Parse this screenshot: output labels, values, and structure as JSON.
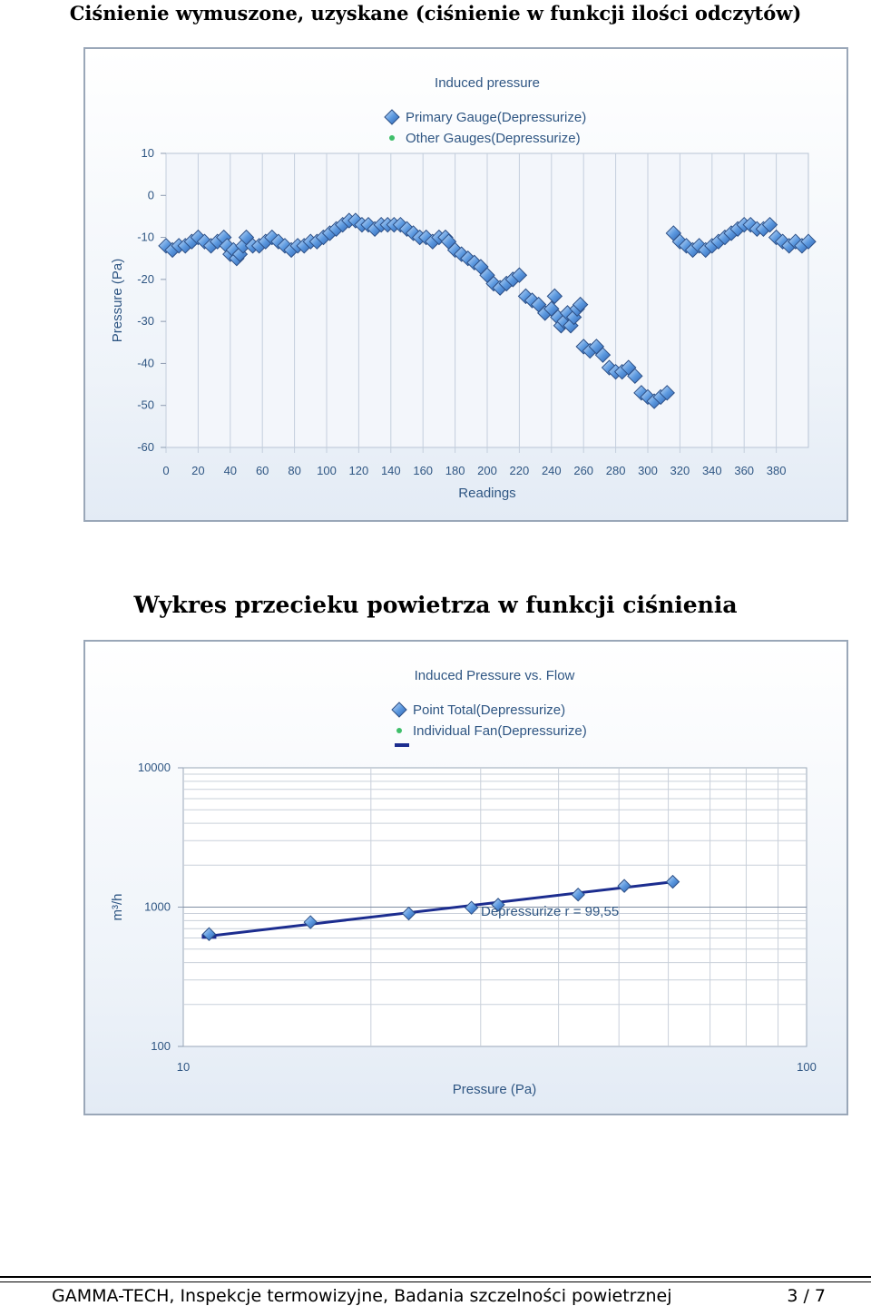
{
  "page": {
    "title1": "Ciśnienie wymuszone, uzyskane (ciśnienie w funkcji ilości odczytów)",
    "title2": "Wykres przecieku powietrza w funkcji ciśnienia",
    "footer_text": "GAMMA-TECH, Inspekcje termowizyjne, Badania szczelności powietrznej",
    "footer_page": "3 / 7"
  },
  "chart_data": [
    {
      "type": "scatter",
      "title": "Induced pressure",
      "xlabel": "Readings",
      "ylabel": "Pressure (Pa)",
      "xlim": [
        0,
        400
      ],
      "ylim": [
        -60,
        10
      ],
      "xticks": [
        "0",
        "20",
        "40",
        "60",
        "80",
        "100",
        "120",
        "140",
        "160",
        "180",
        "200",
        "220",
        "240",
        "260",
        "280",
        "300",
        "320",
        "340",
        "360",
        "380"
      ],
      "yticks": [
        "10",
        "0",
        "-10",
        "-20",
        "-30",
        "-40",
        "-50",
        "-60"
      ],
      "grid": "vertical",
      "legend_position": "top",
      "series": [
        {
          "name": "Primary Gauge(Depressurize)",
          "marker": "diamond",
          "color": "#4a8fd6",
          "points": [
            [
              0,
              -12
            ],
            [
              4,
              -13
            ],
            [
              8,
              -12
            ],
            [
              12,
              -12
            ],
            [
              16,
              -11
            ],
            [
              20,
              -10
            ],
            [
              24,
              -11
            ],
            [
              28,
              -12
            ],
            [
              32,
              -11
            ],
            [
              36,
              -10
            ],
            [
              38,
              -12
            ],
            [
              40,
              -14
            ],
            [
              42,
              -13
            ],
            [
              44,
              -15
            ],
            [
              46,
              -14
            ],
            [
              48,
              -12
            ],
            [
              50,
              -10
            ],
            [
              54,
              -12
            ],
            [
              58,
              -12
            ],
            [
              62,
              -11
            ],
            [
              66,
              -10
            ],
            [
              70,
              -11
            ],
            [
              74,
              -12
            ],
            [
              78,
              -13
            ],
            [
              82,
              -12
            ],
            [
              86,
              -12
            ],
            [
              90,
              -11
            ],
            [
              94,
              -11
            ],
            [
              98,
              -10
            ],
            [
              102,
              -9
            ],
            [
              106,
              -8
            ],
            [
              110,
              -7
            ],
            [
              114,
              -6
            ],
            [
              118,
              -6
            ],
            [
              122,
              -7
            ],
            [
              126,
              -7
            ],
            [
              130,
              -8
            ],
            [
              134,
              -7
            ],
            [
              138,
              -7
            ],
            [
              142,
              -7
            ],
            [
              146,
              -7
            ],
            [
              150,
              -8
            ],
            [
              154,
              -9
            ],
            [
              158,
              -10
            ],
            [
              162,
              -10
            ],
            [
              166,
              -11
            ],
            [
              170,
              -10
            ],
            [
              174,
              -10
            ],
            [
              176,
              -11
            ],
            [
              180,
              -13
            ],
            [
              184,
              -14
            ],
            [
              188,
              -15
            ],
            [
              192,
              -16
            ],
            [
              196,
              -17
            ],
            [
              200,
              -19
            ],
            [
              204,
              -21
            ],
            [
              208,
              -22
            ],
            [
              212,
              -21
            ],
            [
              216,
              -20
            ],
            [
              220,
              -19
            ],
            [
              224,
              -24
            ],
            [
              228,
              -25
            ],
            [
              232,
              -26
            ],
            [
              236,
              -28
            ],
            [
              240,
              -27
            ],
            [
              242,
              -24
            ],
            [
              244,
              -29
            ],
            [
              246,
              -31
            ],
            [
              248,
              -30
            ],
            [
              250,
              -28
            ],
            [
              252,
              -31
            ],
            [
              254,
              -29
            ],
            [
              256,
              -27
            ],
            [
              258,
              -26
            ],
            [
              260,
              -36
            ],
            [
              264,
              -37
            ],
            [
              268,
              -36
            ],
            [
              272,
              -38
            ],
            [
              276,
              -41
            ],
            [
              280,
              -42
            ],
            [
              284,
              -42
            ],
            [
              288,
              -41
            ],
            [
              292,
              -43
            ],
            [
              296,
              -47
            ],
            [
              300,
              -48
            ],
            [
              304,
              -49
            ],
            [
              308,
              -48
            ],
            [
              312,
              -47
            ],
            [
              316,
              -9
            ],
            [
              320,
              -11
            ],
            [
              324,
              -12
            ],
            [
              328,
              -13
            ],
            [
              332,
              -12
            ],
            [
              336,
              -13
            ],
            [
              340,
              -12
            ],
            [
              344,
              -11
            ],
            [
              348,
              -10
            ],
            [
              352,
              -9
            ],
            [
              356,
              -8
            ],
            [
              360,
              -7
            ],
            [
              364,
              -7
            ],
            [
              368,
              -8
            ],
            [
              372,
              -8
            ],
            [
              376,
              -7
            ],
            [
              380,
              -10
            ],
            [
              384,
              -11
            ],
            [
              388,
              -12
            ],
            [
              392,
              -11
            ],
            [
              396,
              -12
            ],
            [
              400,
              -11
            ]
          ]
        },
        {
          "name": "Other Gauges(Depressurize)",
          "marker": "dot",
          "color": "#3fbf6a",
          "points": []
        }
      ]
    },
    {
      "type": "scatter",
      "title": "Induced Pressure vs. Flow",
      "xlabel": "Pressure (Pa)",
      "ylabel": "m³/h",
      "xscale": "log",
      "yscale": "log",
      "xlim": [
        10,
        100
      ],
      "ylim": [
        100,
        10000
      ],
      "xticks": [
        "10",
        "100"
      ],
      "yticks": [
        "10000",
        "1000",
        "100"
      ],
      "grid": "log",
      "legend_position": "top",
      "annotation": "Depressurize r = 99,55",
      "series": [
        {
          "name": "Point Total(Depressurize)",
          "marker": "diamond",
          "color": "#4a8fd6",
          "points": [
            [
              11,
              640
            ],
            [
              16,
              780
            ],
            [
              23,
              900
            ],
            [
              29,
              990
            ],
            [
              32,
              1040
            ],
            [
              43,
              1230
            ],
            [
              51,
              1420
            ],
            [
              61,
              1520
            ]
          ]
        },
        {
          "name": "Individual Fan(Depressurize)",
          "marker": "dot",
          "color": "#3fbf6a",
          "points": []
        }
      ],
      "fit_line": {
        "x": [
          11,
          62
        ],
        "y": [
          620,
          1530
        ],
        "color": "#1c2d8f"
      }
    }
  ]
}
